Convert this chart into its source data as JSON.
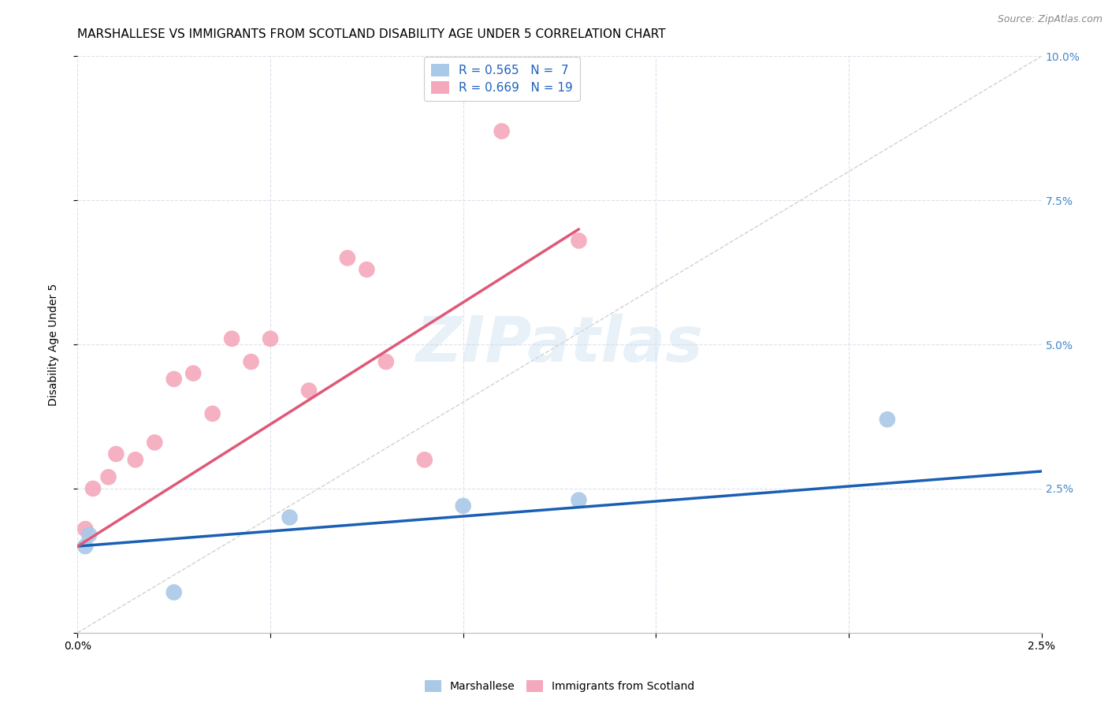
{
  "title": "MARSHALLESE VS IMMIGRANTS FROM SCOTLAND DISABILITY AGE UNDER 5 CORRELATION CHART",
  "source": "Source: ZipAtlas.com",
  "ylabel": "Disability Age Under 5",
  "xlim": [
    0.0,
    0.025
  ],
  "ylim": [
    0.0,
    0.1
  ],
  "xticks": [
    0.0,
    0.005,
    0.01,
    0.015,
    0.02,
    0.025
  ],
  "xtick_labels": [
    "0.0%",
    "",
    "",
    "",
    "",
    "2.5%"
  ],
  "yticks_right": [
    0.0,
    0.025,
    0.05,
    0.075,
    0.1
  ],
  "ytick_labels_right": [
    "",
    "2.5%",
    "5.0%",
    "7.5%",
    "10.0%"
  ],
  "blue_scatter_x": [
    0.0002,
    0.0003,
    0.0025,
    0.0055,
    0.01,
    0.013,
    0.021
  ],
  "blue_scatter_y": [
    0.015,
    0.017,
    0.007,
    0.02,
    0.022,
    0.023,
    0.037
  ],
  "pink_scatter_x": [
    0.0002,
    0.0004,
    0.0008,
    0.001,
    0.0015,
    0.002,
    0.0025,
    0.003,
    0.0035,
    0.004,
    0.0045,
    0.005,
    0.006,
    0.007,
    0.0075,
    0.008,
    0.009,
    0.011,
    0.013
  ],
  "pink_scatter_y": [
    0.018,
    0.025,
    0.027,
    0.031,
    0.03,
    0.033,
    0.044,
    0.045,
    0.038,
    0.051,
    0.047,
    0.051,
    0.042,
    0.065,
    0.063,
    0.047,
    0.03,
    0.087,
    0.068
  ],
  "blue_line_x": [
    0.0,
    0.025
  ],
  "blue_line_y": [
    0.015,
    0.028
  ],
  "pink_line_x": [
    0.0,
    0.013
  ],
  "pink_line_y": [
    0.015,
    0.07
  ],
  "ref_line_x": [
    0.0,
    0.025
  ],
  "ref_line_y": [
    0.0,
    0.1
  ],
  "blue_color": "#aac8e8",
  "pink_color": "#f4a8bc",
  "blue_line_color": "#1a5fb4",
  "pink_line_color": "#e05878",
  "ref_line_color": "#cccccc",
  "legend_blue_R": "R = 0.565",
  "legend_blue_N": "N =  7",
  "legend_pink_R": "R = 0.669",
  "legend_pink_N": "N = 19",
  "title_fontsize": 11,
  "label_fontsize": 10,
  "tick_fontsize": 10,
  "watermark_text": "ZIPatlas",
  "background_color": "#ffffff",
  "grid_color": "#dde0ee"
}
